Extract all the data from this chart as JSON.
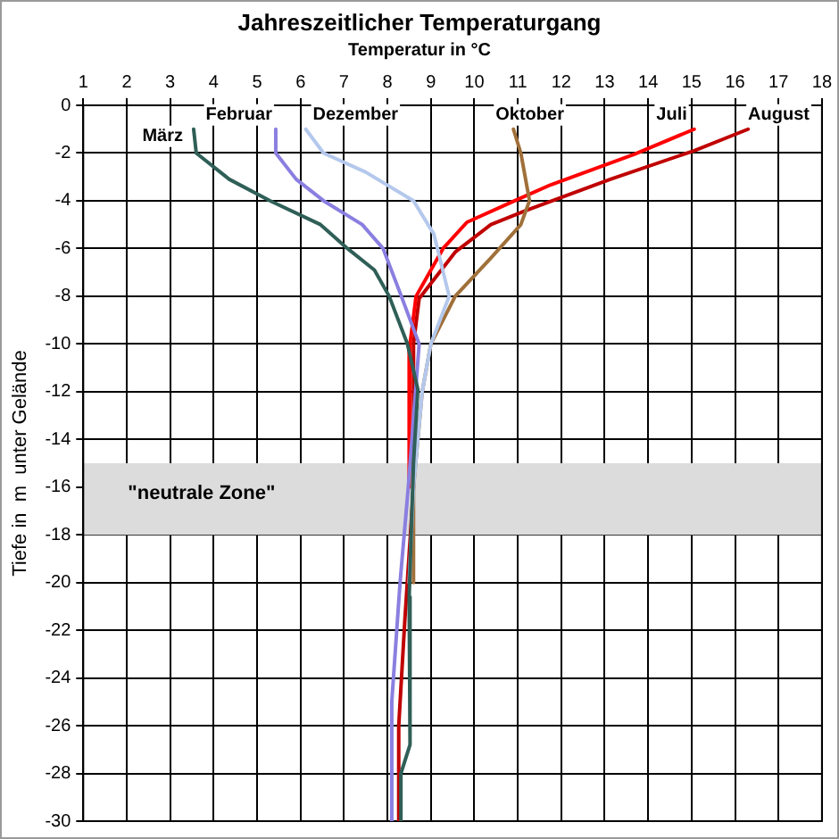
{
  "chart_data": {
    "type": "line",
    "title": "Jahreszeitlicher Temperaturgang",
    "xlabel": "Temperatur  in °C",
    "ylabel": "Tiefe in  m  unter Gelände",
    "xlim": [
      1,
      18
    ],
    "xticks": [
      1,
      2,
      3,
      4,
      5,
      6,
      7,
      8,
      9,
      10,
      11,
      12,
      13,
      14,
      15,
      16,
      17,
      18
    ],
    "ylim": [
      -30,
      0
    ],
    "yticks": [
      0,
      -2,
      -4,
      -6,
      -8,
      -10,
      -12,
      -14,
      -16,
      -18,
      -20,
      -22,
      -24,
      -26,
      -28,
      -30
    ],
    "grid": true,
    "legend": false,
    "marker": "none",
    "line_style": "solid",
    "bands": [
      {
        "axis": "y",
        "from": -18,
        "to": -15,
        "label": "\"neutrale Zone\"",
        "color": "#dcdcdc"
      }
    ],
    "series": [
      {
        "name": "März",
        "color": "#2f5f57",
        "x": [
          3.54,
          3.6,
          4.36,
          5.3,
          6.46,
          7.08,
          7.7,
          8.04,
          8.46,
          8.7,
          8.6,
          8.5,
          8.52,
          8.31,
          8.31
        ],
        "values": [
          -1,
          -2,
          -3.1,
          -4,
          -5,
          -6,
          -6.9,
          -8,
          -10,
          -11.9,
          -15,
          -20.6,
          -26.8,
          -28,
          -30
        ]
      },
      {
        "name": "Februar",
        "color": "#8a7fe0",
        "x": [
          5.43,
          5.43,
          5.9,
          6.53,
          7.42,
          7.9,
          8.32,
          8.73,
          8.48,
          8.3,
          8.26,
          8.1,
          8.1
        ],
        "values": [
          -1,
          -2,
          -3.1,
          -4,
          -5,
          -6,
          -8,
          -10,
          -16,
          -19.8,
          -20.8,
          -25,
          -30
        ]
      },
      {
        "name": "Dezember",
        "color": "#b4c8ec",
        "x": [
          6.12,
          6.53,
          7.5,
          8.6,
          9.07,
          9.42,
          9.0,
          8.8,
          8.6,
          8.5
        ],
        "values": [
          -1,
          -2,
          -2.8,
          -4,
          -5.4,
          -8,
          -10,
          -12,
          -16,
          -20
        ]
      },
      {
        "name": "Oktober",
        "color": "#a0703a",
        "x": [
          10.9,
          11.07,
          11.27,
          11.07,
          10.38,
          9.56,
          9.0,
          8.8,
          8.6,
          8.6
        ],
        "values": [
          -1,
          -2,
          -4,
          -5,
          -6.4,
          -8,
          -10,
          -12,
          -16,
          -20
        ]
      },
      {
        "name": "Juli",
        "color": "#ff0000",
        "x": [
          15.06,
          13.68,
          11.76,
          10.93,
          9.83,
          9.28,
          8.66,
          8.52,
          8.5
        ],
        "values": [
          -1,
          -2.05,
          -3.33,
          -4,
          -4.9,
          -6,
          -8,
          -10,
          -16
        ]
      },
      {
        "name": "August",
        "color": "#c00000",
        "x": [
          16.3,
          15.06,
          13.13,
          11.2,
          10.38,
          9.56,
          8.73,
          8.6,
          8.6,
          8.4,
          8.26,
          8.26
        ],
        "values": [
          -1,
          -1.9,
          -3.1,
          -4.4,
          -5,
          -6.15,
          -8.1,
          -10,
          -16,
          -21.6,
          -26,
          -30
        ]
      }
    ]
  }
}
